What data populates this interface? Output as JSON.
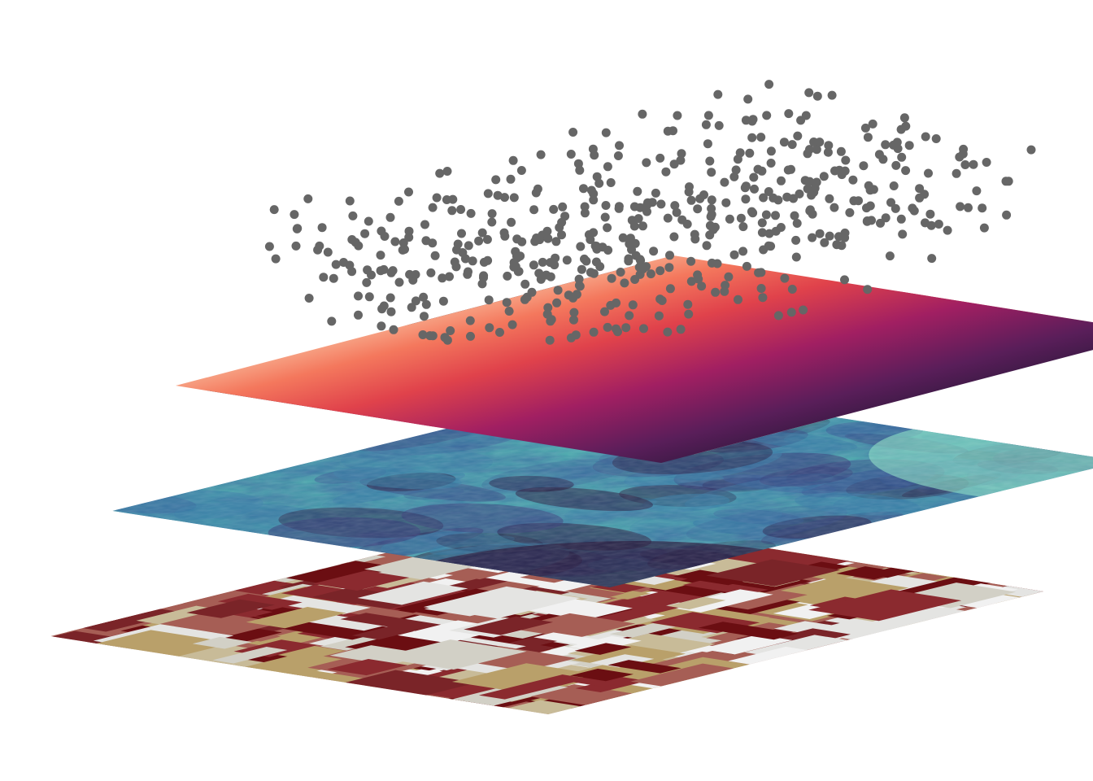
{
  "figure": {
    "description_layers": [
      {
        "id": "categorical-layer",
        "palette": [
          "#6b0e12",
          "#8b2a2f",
          "#a65e55",
          "#b9a06a",
          "#c8bb98",
          "#d2d0c6",
          "#e4e4e2",
          "#f1f1f1",
          "#7a2428"
        ]
      },
      {
        "id": "continuous-noise-layer",
        "palette": [
          "#2b1a3d",
          "#3a3d7a",
          "#3a5c97",
          "#3b7ea7",
          "#3d9fb0",
          "#52c0b4",
          "#8ce0c4"
        ]
      },
      {
        "id": "gradient-layer",
        "palette": [
          "#1e1530",
          "#5a1e5a",
          "#a11f62",
          "#e0424b",
          "#f4785d",
          "#f8b394",
          "#fdf1ea"
        ]
      }
    ],
    "points": {
      "color": "#666666",
      "count": 520
    }
  }
}
